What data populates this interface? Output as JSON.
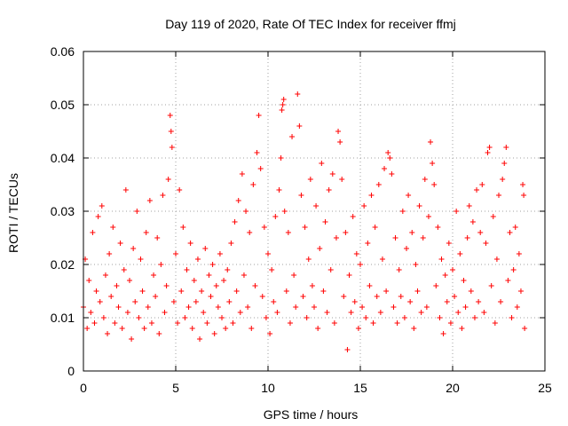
{
  "chart_data": {
    "type": "scatter",
    "title": "Day 119 of 2020, Rate Of TEC Index for receiver ffmj",
    "xlabel": "GPS time / hours",
    "ylabel": "ROTI / TECUs",
    "xlim": [
      0,
      25
    ],
    "ylim": [
      0,
      0.06
    ],
    "xticks": [
      0,
      5,
      10,
      15,
      20,
      25
    ],
    "xtick_labels": [
      "0",
      "5",
      "10",
      "15",
      "20",
      "25"
    ],
    "yticks": [
      0,
      0.01,
      0.02,
      0.03,
      0.04,
      0.05,
      0.06
    ],
    "ytick_labels": [
      "0",
      "0.01",
      "0.02",
      "0.03",
      "0.04",
      "0.05",
      "0.06"
    ],
    "grid": true,
    "marker": "+",
    "color": "#ff0000",
    "series": [
      {
        "name": "ROTI",
        "points": [
          [
            0.0,
            0.012
          ],
          [
            0.1,
            0.021
          ],
          [
            0.2,
            0.008
          ],
          [
            0.3,
            0.017
          ],
          [
            0.4,
            0.011
          ],
          [
            0.5,
            0.026
          ],
          [
            0.6,
            0.009
          ],
          [
            0.7,
            0.015
          ],
          [
            0.8,
            0.029
          ],
          [
            0.9,
            0.013
          ],
          [
            1.0,
            0.031
          ],
          [
            1.1,
            0.01
          ],
          [
            1.2,
            0.018
          ],
          [
            1.3,
            0.007
          ],
          [
            1.4,
            0.022
          ],
          [
            1.5,
            0.014
          ],
          [
            1.6,
            0.027
          ],
          [
            1.7,
            0.009
          ],
          [
            1.8,
            0.016
          ],
          [
            1.9,
            0.012
          ],
          [
            2.0,
            0.024
          ],
          [
            2.1,
            0.008
          ],
          [
            2.2,
            0.019
          ],
          [
            2.3,
            0.034
          ],
          [
            2.4,
            0.011
          ],
          [
            2.5,
            0.017
          ],
          [
            2.6,
            0.006
          ],
          [
            2.7,
            0.023
          ],
          [
            2.8,
            0.013
          ],
          [
            2.9,
            0.03
          ],
          [
            3.0,
            0.01
          ],
          [
            3.1,
            0.021
          ],
          [
            3.2,
            0.015
          ],
          [
            3.3,
            0.008
          ],
          [
            3.4,
            0.026
          ],
          [
            3.5,
            0.012
          ],
          [
            3.6,
            0.032
          ],
          [
            3.7,
            0.009
          ],
          [
            3.8,
            0.018
          ],
          [
            3.9,
            0.014
          ],
          [
            4.0,
            0.025
          ],
          [
            4.1,
            0.007
          ],
          [
            4.2,
            0.02
          ],
          [
            4.3,
            0.033
          ],
          [
            4.4,
            0.011
          ],
          [
            4.5,
            0.016
          ],
          [
            4.6,
            0.036
          ],
          [
            4.7,
            0.048
          ],
          [
            4.75,
            0.045
          ],
          [
            4.8,
            0.042
          ],
          [
            4.9,
            0.013
          ],
          [
            5.0,
            0.022
          ],
          [
            5.1,
            0.009
          ],
          [
            5.2,
            0.034
          ],
          [
            5.3,
            0.015
          ],
          [
            5.4,
            0.027
          ],
          [
            5.5,
            0.01
          ],
          [
            5.6,
            0.019
          ],
          [
            5.7,
            0.012
          ],
          [
            5.8,
            0.024
          ],
          [
            5.9,
            0.008
          ],
          [
            6.0,
            0.017
          ],
          [
            6.1,
            0.013
          ],
          [
            6.2,
            0.021
          ],
          [
            6.3,
            0.006
          ],
          [
            6.4,
            0.015
          ],
          [
            6.5,
            0.011
          ],
          [
            6.6,
            0.023
          ],
          [
            6.7,
            0.009
          ],
          [
            6.8,
            0.018
          ],
          [
            6.9,
            0.014
          ],
          [
            7.0,
            0.02
          ],
          [
            7.1,
            0.007
          ],
          [
            7.2,
            0.016
          ],
          [
            7.3,
            0.012
          ],
          [
            7.4,
            0.022
          ],
          [
            7.5,
            0.01
          ],
          [
            7.6,
            0.017
          ],
          [
            7.7,
            0.008
          ],
          [
            7.8,
            0.019
          ],
          [
            7.9,
            0.013
          ],
          [
            8.0,
            0.024
          ],
          [
            8.1,
            0.009
          ],
          [
            8.2,
            0.028
          ],
          [
            8.3,
            0.015
          ],
          [
            8.4,
            0.032
          ],
          [
            8.5,
            0.011
          ],
          [
            8.6,
            0.037
          ],
          [
            8.7,
            0.018
          ],
          [
            8.8,
            0.03
          ],
          [
            8.9,
            0.012
          ],
          [
            9.0,
            0.026
          ],
          [
            9.1,
            0.008
          ],
          [
            9.2,
            0.035
          ],
          [
            9.3,
            0.016
          ],
          [
            9.4,
            0.041
          ],
          [
            9.5,
            0.048
          ],
          [
            9.6,
            0.038
          ],
          [
            9.7,
            0.014
          ],
          [
            9.8,
            0.027
          ],
          [
            9.9,
            0.01
          ],
          [
            10.0,
            0.022
          ],
          [
            10.1,
            0.007
          ],
          [
            10.2,
            0.019
          ],
          [
            10.3,
            0.013
          ],
          [
            10.4,
            0.029
          ],
          [
            10.5,
            0.011
          ],
          [
            10.6,
            0.034
          ],
          [
            10.7,
            0.04
          ],
          [
            10.75,
            0.049
          ],
          [
            10.8,
            0.05
          ],
          [
            10.85,
            0.051
          ],
          [
            10.9,
            0.03
          ],
          [
            11.0,
            0.015
          ],
          [
            11.1,
            0.026
          ],
          [
            11.2,
            0.009
          ],
          [
            11.3,
            0.044
          ],
          [
            11.4,
            0.018
          ],
          [
            11.5,
            0.012
          ],
          [
            11.6,
            0.052
          ],
          [
            11.7,
            0.046
          ],
          [
            11.8,
            0.033
          ],
          [
            11.9,
            0.014
          ],
          [
            12.0,
            0.027
          ],
          [
            12.1,
            0.01
          ],
          [
            12.2,
            0.021
          ],
          [
            12.3,
            0.036
          ],
          [
            12.4,
            0.016
          ],
          [
            12.5,
            0.012
          ],
          [
            12.6,
            0.031
          ],
          [
            12.7,
            0.008
          ],
          [
            12.8,
            0.023
          ],
          [
            12.9,
            0.039
          ],
          [
            13.0,
            0.015
          ],
          [
            13.1,
            0.028
          ],
          [
            13.2,
            0.011
          ],
          [
            13.3,
            0.034
          ],
          [
            13.4,
            0.019
          ],
          [
            13.5,
            0.037
          ],
          [
            13.6,
            0.009
          ],
          [
            13.7,
            0.025
          ],
          [
            13.8,
            0.045
          ],
          [
            13.9,
            0.043
          ],
          [
            14.0,
            0.036
          ],
          [
            14.1,
            0.014
          ],
          [
            14.2,
            0.026
          ],
          [
            14.3,
            0.004
          ],
          [
            14.4,
            0.018
          ],
          [
            14.5,
            0.011
          ],
          [
            14.6,
            0.029
          ],
          [
            14.7,
            0.013
          ],
          [
            14.8,
            0.022
          ],
          [
            14.9,
            0.008
          ],
          [
            15.0,
            0.02
          ],
          [
            15.1,
            0.012
          ],
          [
            15.2,
            0.031
          ],
          [
            15.3,
            0.01
          ],
          [
            15.4,
            0.024
          ],
          [
            15.5,
            0.016
          ],
          [
            15.6,
            0.033
          ],
          [
            15.7,
            0.009
          ],
          [
            15.8,
            0.027
          ],
          [
            15.9,
            0.014
          ],
          [
            16.0,
            0.035
          ],
          [
            16.1,
            0.011
          ],
          [
            16.2,
            0.021
          ],
          [
            16.3,
            0.038
          ],
          [
            16.4,
            0.015
          ],
          [
            16.5,
            0.041
          ],
          [
            16.6,
            0.04
          ],
          [
            16.7,
            0.037
          ],
          [
            16.8,
            0.012
          ],
          [
            16.9,
            0.025
          ],
          [
            17.0,
            0.009
          ],
          [
            17.1,
            0.019
          ],
          [
            17.2,
            0.014
          ],
          [
            17.3,
            0.03
          ],
          [
            17.4,
            0.01
          ],
          [
            17.5,
            0.023
          ],
          [
            17.6,
            0.033
          ],
          [
            17.7,
            0.013
          ],
          [
            17.8,
            0.026
          ],
          [
            17.9,
            0.008
          ],
          [
            18.0,
            0.02
          ],
          [
            18.1,
            0.015
          ],
          [
            18.2,
            0.031
          ],
          [
            18.3,
            0.011
          ],
          [
            18.4,
            0.025
          ],
          [
            18.5,
            0.036
          ],
          [
            18.6,
            0.012
          ],
          [
            18.7,
            0.029
          ],
          [
            18.8,
            0.043
          ],
          [
            18.9,
            0.039
          ],
          [
            19.0,
            0.035
          ],
          [
            19.1,
            0.016
          ],
          [
            19.2,
            0.027
          ],
          [
            19.3,
            0.01
          ],
          [
            19.4,
            0.021
          ],
          [
            19.5,
            0.007
          ],
          [
            19.6,
            0.018
          ],
          [
            19.7,
            0.013
          ],
          [
            19.8,
            0.024
          ],
          [
            19.9,
            0.009
          ],
          [
            20.0,
            0.019
          ],
          [
            20.1,
            0.014
          ],
          [
            20.2,
            0.03
          ],
          [
            20.3,
            0.011
          ],
          [
            20.4,
            0.022
          ],
          [
            20.5,
            0.008
          ],
          [
            20.6,
            0.017
          ],
          [
            20.7,
            0.012
          ],
          [
            20.8,
            0.025
          ],
          [
            20.9,
            0.031
          ],
          [
            21.0,
            0.015
          ],
          [
            21.1,
            0.028
          ],
          [
            21.2,
            0.01
          ],
          [
            21.3,
            0.034
          ],
          [
            21.4,
            0.013
          ],
          [
            21.5,
            0.026
          ],
          [
            21.6,
            0.035
          ],
          [
            21.7,
            0.011
          ],
          [
            21.8,
            0.024
          ],
          [
            21.9,
            0.041
          ],
          [
            22.0,
            0.042
          ],
          [
            22.1,
            0.016
          ],
          [
            22.2,
            0.029
          ],
          [
            22.3,
            0.009
          ],
          [
            22.4,
            0.021
          ],
          [
            22.5,
            0.033
          ],
          [
            22.6,
            0.013
          ],
          [
            22.7,
            0.036
          ],
          [
            22.8,
            0.039
          ],
          [
            22.9,
            0.042
          ],
          [
            23.0,
            0.017
          ],
          [
            23.1,
            0.026
          ],
          [
            23.2,
            0.01
          ],
          [
            23.3,
            0.019
          ],
          [
            23.4,
            0.027
          ],
          [
            23.5,
            0.012
          ],
          [
            23.6,
            0.022
          ],
          [
            23.7,
            0.015
          ],
          [
            23.8,
            0.035
          ],
          [
            23.85,
            0.033
          ],
          [
            23.9,
            0.008
          ]
        ]
      }
    ]
  }
}
